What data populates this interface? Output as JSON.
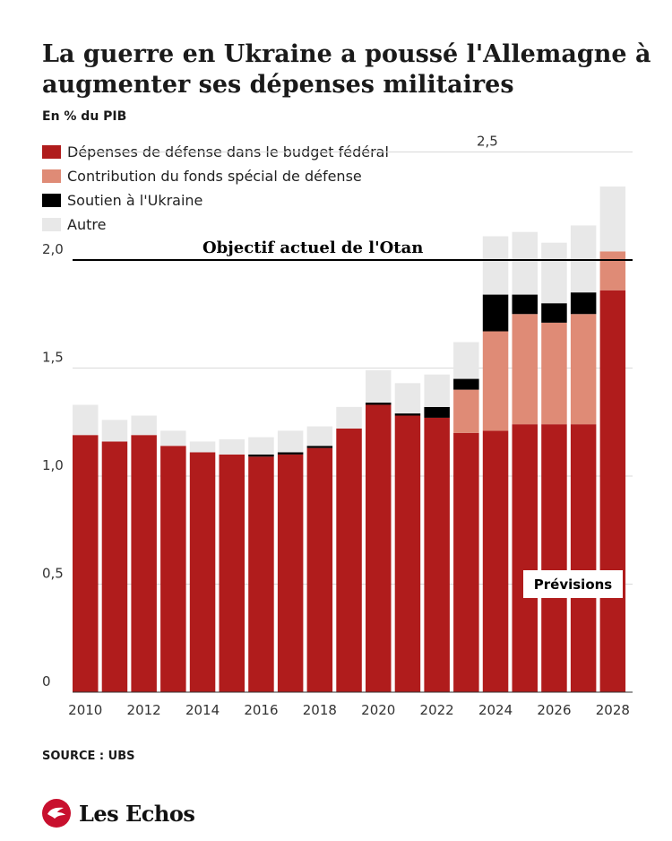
{
  "header": {
    "title": "La guerre en Ukraine a poussé l'Allemagne à augmenter ses dépenses militaires",
    "subtitle": "En % du PIB"
  },
  "legend": [
    {
      "label": "Dépenses de défense dans le budget fédéral",
      "color": "#b01c1c"
    },
    {
      "label": "Contribution du fonds spécial de défense",
      "color": "#df8b76"
    },
    {
      "label": "Soutien à l'Ukraine",
      "color": "#000000"
    },
    {
      "label": "Autre",
      "color": "#e8e8e8"
    }
  ],
  "footer": {
    "source": "SOURCE : UBS",
    "brand": "Les Echos"
  },
  "chart_data": {
    "type": "bar",
    "stacked": true,
    "title": "La guerre en Ukraine a poussé l'Allemagne à augmenter ses dépenses militaires",
    "ylabel": "En % du PIB",
    "ylim": [
      0,
      2.5
    ],
    "yticks": [
      "0",
      "0,5",
      "1,0",
      "1,5",
      "2,0",
      "2,5"
    ],
    "ytick_values": [
      0,
      0.5,
      1.0,
      1.5,
      2.0,
      2.5
    ],
    "categories": [
      "2010",
      "2011",
      "2012",
      "2013",
      "2014",
      "2015",
      "2016",
      "2017",
      "2018",
      "2019",
      "2020",
      "2021",
      "2022",
      "2023",
      "2024",
      "2025",
      "2026",
      "2027",
      "2028"
    ],
    "xtick_labels": [
      "2010",
      "2012",
      "2014",
      "2016",
      "2018",
      "2020",
      "2022",
      "2024",
      "2026",
      "2028"
    ],
    "series": [
      {
        "name": "Dépenses de défense dans le budget fédéral",
        "color": "#b01c1c",
        "values": [
          1.19,
          1.16,
          1.19,
          1.14,
          1.11,
          1.1,
          1.09,
          1.1,
          1.13,
          1.22,
          1.33,
          1.28,
          1.27,
          1.2,
          1.21,
          1.24,
          1.24,
          1.24,
          1.86
        ]
      },
      {
        "name": "Contribution du fonds spécial de défense",
        "color": "#df8b76",
        "values": [
          0,
          0,
          0,
          0,
          0,
          0,
          0,
          0,
          0,
          0,
          0,
          0,
          0,
          0.2,
          0.46,
          0.51,
          0.47,
          0.51,
          0.18
        ]
      },
      {
        "name": "Soutien à l'Ukraine",
        "color": "#000000",
        "values": [
          0,
          0,
          0,
          0,
          0,
          0,
          0.01,
          0.01,
          0.01,
          0,
          0.01,
          0.01,
          0.05,
          0.05,
          0.17,
          0.09,
          0.09,
          0.1,
          0
        ]
      },
      {
        "name": "Autre",
        "color": "#e8e8e8",
        "values": [
          0.14,
          0.1,
          0.09,
          0.07,
          0.05,
          0.07,
          0.08,
          0.1,
          0.09,
          0.1,
          0.15,
          0.14,
          0.15,
          0.17,
          0.27,
          0.29,
          0.28,
          0.31,
          0.3
        ]
      }
    ],
    "reference_line": {
      "value": 2.0,
      "label": "Objectif actuel de l'Otan"
    },
    "forecast_label": "Prévisions",
    "grid": true
  }
}
